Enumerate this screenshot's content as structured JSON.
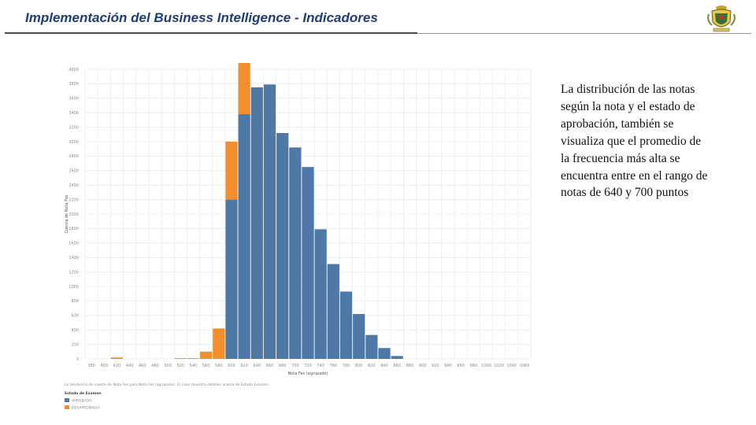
{
  "header": {
    "title": "Implementación del Business Intelligence - Indicadores"
  },
  "caption": {
    "text": "La distribución de las notas según la nota y el estado de aprobación, también se visualiza que el promedio de la frecuencia más alta se encuentra entre en el rango de notas de 640 y 700 puntos"
  },
  "colors": {
    "aprobado": "#4e79a7",
    "desaprobado": "#f28e2b",
    "grid": "#e6e6e6"
  },
  "chart_data": {
    "type": "bar",
    "stacked": true,
    "xlabel": "Nota Fes (agrupado)",
    "ylabel": "Cuenta de Nota Fes",
    "categories": [
      "380",
      "400",
      "420",
      "440",
      "460",
      "480",
      "500",
      "520",
      "540",
      "560",
      "580",
      "600",
      "620",
      "640",
      "660",
      "680",
      "700",
      "720",
      "740",
      "760",
      "780",
      "800",
      "820",
      "840",
      "860",
      "880",
      "900",
      "920",
      "940",
      "960",
      "980",
      "1000",
      "1020",
      "1040",
      "1060"
    ],
    "ylim": [
      0,
      4000
    ],
    "yticks": [
      0,
      200,
      400,
      600,
      800,
      1000,
      1200,
      1400,
      1600,
      1800,
      2000,
      2200,
      2400,
      2600,
      2800,
      3000,
      3200,
      3400,
      3600,
      3800,
      4000
    ],
    "series": [
      {
        "name": "APROBADO",
        "color": "#4e79a7",
        "values": [
          0,
          0,
          0,
          0,
          0,
          0,
          0,
          0,
          0,
          0,
          0,
          2200,
          3380,
          3750,
          3790,
          3120,
          2920,
          2650,
          1790,
          1310,
          930,
          620,
          330,
          150,
          40,
          0,
          0,
          0,
          0,
          0,
          0,
          0,
          0,
          0,
          0
        ]
      },
      {
        "name": "DESAPROBADO",
        "color": "#f28e2b",
        "values": [
          0,
          0,
          20,
          0,
          0,
          0,
          0,
          10,
          10,
          100,
          420,
          800,
          820,
          0,
          0,
          0,
          0,
          0,
          0,
          0,
          0,
          0,
          0,
          0,
          0,
          0,
          0,
          0,
          0,
          0,
          0,
          0,
          0,
          0,
          0
        ]
      }
    ],
    "grid": true,
    "legend": {
      "title": "Estado de Examen",
      "placement": "bottom-left",
      "items": [
        "APROBADO",
        "DESAPROBADO"
      ]
    },
    "note": "La tendencia de cuenta de Nota Fes para Nota Fes (agrupado). El color muestra detalles acerca de Estado Examen."
  }
}
